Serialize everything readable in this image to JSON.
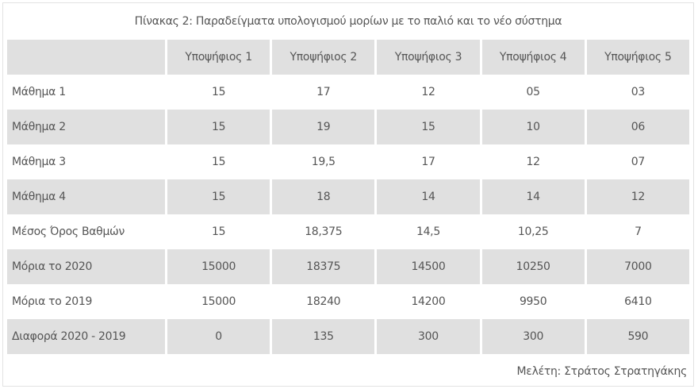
{
  "title": "Πίνακας 2: Παραδείγματα υπολογισμού μορίων με το παλιό και το νέο σύστημα",
  "headers": [
    "",
    "Υποψήφιος 1",
    "Υποψήφιος 2",
    "Υποψήφιος 3",
    "Υποψήφιος 4",
    "Υποψήφιος 5"
  ],
  "rows": [
    [
      "Μάθημα 1",
      "15",
      "17",
      "12",
      "05",
      "03"
    ],
    [
      "Μάθημα 2",
      "15",
      "19",
      "15",
      "10",
      "06"
    ],
    [
      "Μάθημα 3",
      "15",
      "19,5",
      "17",
      "12",
      "07"
    ],
    [
      "Μάθημα 4",
      "15",
      "18",
      "14",
      "14",
      "12"
    ],
    [
      "Μέσος Όρος Βαθμών",
      "15",
      "18,375",
      "14,5",
      "10,25",
      "7"
    ],
    [
      "Μόρια το 2020",
      "15000",
      "18375",
      "14500",
      "10250",
      "7000"
    ],
    [
      "Μόρια το 2019",
      "15000",
      "18240",
      "14200",
      "9950",
      "6410"
    ],
    [
      "Διαφορά 2020 - 2019",
      "0",
      "135",
      "300",
      "300",
      "590"
    ]
  ],
  "footer": "Μελέτη: Στράτος Στρατηγάκης"
}
